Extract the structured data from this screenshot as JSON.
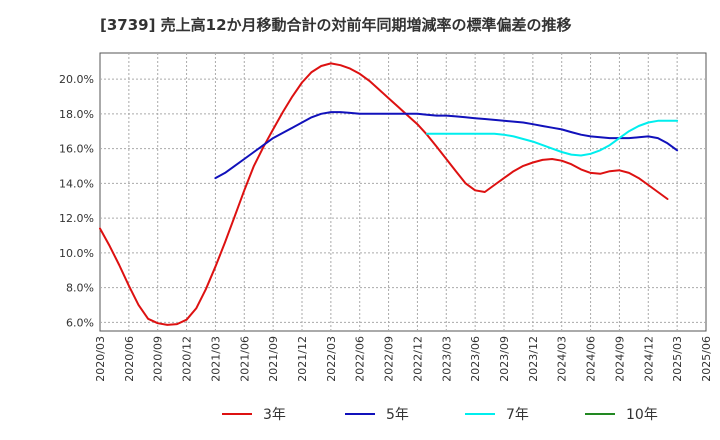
{
  "chart_data": {
    "type": "line",
    "title": "[3739]  売上高12か月移動合計の対前年同期増減率の標準偏差の推移",
    "xlabel": "",
    "ylabel": "",
    "ylim": [
      5.5,
      21.5
    ],
    "y_ticks": [
      6.0,
      8.0,
      10.0,
      12.0,
      14.0,
      16.0,
      18.0,
      20.0
    ],
    "y_tick_format": "%",
    "x_tick_labels": [
      "2020/03",
      "2020/06",
      "2020/09",
      "2020/12",
      "2021/03",
      "2021/06",
      "2021/09",
      "2021/12",
      "2022/03",
      "2022/06",
      "2022/09",
      "2022/12",
      "2023/03",
      "2023/06",
      "2023/09",
      "2023/12",
      "2024/03",
      "2024/06",
      "2024/09",
      "2024/12",
      "2025/03",
      "2025/06"
    ],
    "grid": true,
    "legend_position": "bottom",
    "series": [
      {
        "name": "3年",
        "color": "#dd1111",
        "x": [
          "2020/03",
          "2020/04",
          "2020/05",
          "2020/06",
          "2020/07",
          "2020/08",
          "2020/09",
          "2020/10",
          "2020/11",
          "2020/12",
          "2021/01",
          "2021/02",
          "2021/03",
          "2021/04",
          "2021/05",
          "2021/06",
          "2021/07",
          "2021/08",
          "2021/09",
          "2021/10",
          "2021/11",
          "2021/12",
          "2022/01",
          "2022/02",
          "2022/03",
          "2022/04",
          "2022/05",
          "2022/06",
          "2022/07",
          "2022/08",
          "2022/09",
          "2022/10",
          "2022/11",
          "2022/12",
          "2023/01",
          "2023/02",
          "2023/03",
          "2023/04",
          "2023/05",
          "2023/06",
          "2023/07",
          "2023/08",
          "2023/09",
          "2023/10",
          "2023/11",
          "2023/12",
          "2024/01",
          "2024/02",
          "2024/03",
          "2024/04",
          "2024/05",
          "2024/06",
          "2024/07",
          "2024/08",
          "2024/09",
          "2024/10",
          "2024/11",
          "2024/12",
          "2025/01",
          "2025/02",
          "2025/03"
        ],
        "values": [
          11.4,
          10.4,
          9.3,
          8.1,
          7.0,
          6.2,
          5.95,
          5.85,
          5.9,
          6.15,
          6.8,
          7.9,
          9.2,
          10.6,
          12.1,
          13.6,
          15.0,
          16.1,
          17.1,
          18.1,
          19.0,
          19.8,
          20.4,
          20.75,
          20.9,
          20.8,
          20.6,
          20.3,
          19.9,
          19.4,
          18.9,
          18.4,
          17.9,
          17.4,
          16.8,
          16.1,
          15.4,
          14.7,
          14.0,
          13.6,
          13.5,
          13.9,
          14.3,
          14.7,
          15.0,
          15.2,
          15.35,
          15.4,
          15.3,
          15.1,
          14.8,
          14.6,
          14.55,
          14.7,
          14.75,
          14.6,
          14.3,
          13.9,
          13.5,
          13.1,
          null
        ]
      },
      {
        "name": "5年",
        "color": "#1111bb",
        "x": [
          "2021/03",
          "2021/04",
          "2021/05",
          "2021/06",
          "2021/07",
          "2021/08",
          "2021/09",
          "2021/10",
          "2021/11",
          "2021/12",
          "2022/01",
          "2022/02",
          "2022/03",
          "2022/04",
          "2022/05",
          "2022/06",
          "2022/07",
          "2022/08",
          "2022/09",
          "2022/10",
          "2022/11",
          "2022/12",
          "2023/01",
          "2023/02",
          "2023/03",
          "2023/04",
          "2023/05",
          "2023/06",
          "2023/07",
          "2023/08",
          "2023/09",
          "2023/10",
          "2023/11",
          "2023/12",
          "2024/01",
          "2024/02",
          "2024/03",
          "2024/04",
          "2024/05",
          "2024/06",
          "2024/07",
          "2024/08",
          "2024/09",
          "2024/10",
          "2024/11",
          "2024/12",
          "2025/01",
          "2025/02",
          "2025/03"
        ],
        "values": [
          14.3,
          14.6,
          15.0,
          15.4,
          15.8,
          16.2,
          16.6,
          16.9,
          17.2,
          17.5,
          17.8,
          18.0,
          18.1,
          18.1,
          18.05,
          18.0,
          18.0,
          18.0,
          18.0,
          18.0,
          18.0,
          18.0,
          17.95,
          17.9,
          17.9,
          17.85,
          17.8,
          17.75,
          17.7,
          17.65,
          17.6,
          17.55,
          17.5,
          17.4,
          17.3,
          17.2,
          17.1,
          16.95,
          16.8,
          16.7,
          16.65,
          16.6,
          16.6,
          16.6,
          16.65,
          16.7,
          16.6,
          16.3,
          15.9
        ]
      },
      {
        "name": "7年",
        "color": "#00eeee",
        "x": [
          "2023/01",
          "2023/02",
          "2023/03",
          "2023/04",
          "2023/05",
          "2023/06",
          "2023/07",
          "2023/08",
          "2023/09",
          "2023/10",
          "2023/11",
          "2023/12",
          "2024/01",
          "2024/02",
          "2024/03",
          "2024/04",
          "2024/05",
          "2024/06",
          "2024/07",
          "2024/08",
          "2024/09",
          "2024/10",
          "2024/11",
          "2024/12",
          "2025/01",
          "2025/02",
          "2025/03"
        ],
        "values": [
          16.85,
          16.85,
          16.85,
          16.85,
          16.85,
          16.85,
          16.85,
          16.85,
          16.8,
          16.7,
          16.55,
          16.4,
          16.2,
          16.0,
          15.8,
          15.65,
          15.6,
          15.7,
          15.9,
          16.2,
          16.6,
          17.0,
          17.3,
          17.5,
          17.6,
          17.6,
          17.6
        ]
      },
      {
        "name": "10年",
        "color": "#228822",
        "x": [],
        "values": []
      }
    ]
  }
}
